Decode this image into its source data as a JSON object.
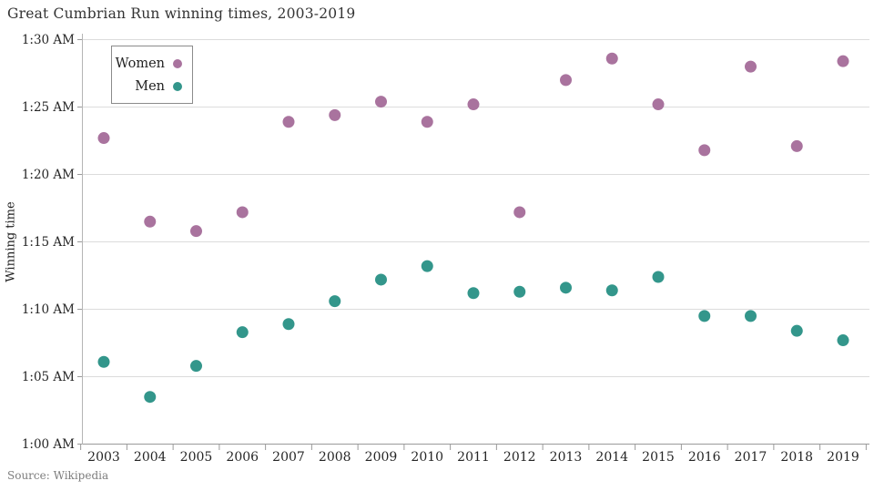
{
  "title": {
    "text": "Great Cumbrian Run winning times, 2003-2019"
  },
  "source": {
    "text": "Source: Wikipedia"
  },
  "legend": {
    "items": [
      {
        "label": "Women",
        "color": "#a9739e"
      },
      {
        "label": "Men",
        "color": "#33968b"
      }
    ]
  },
  "colors": {
    "women": "#a9739e",
    "men": "#33968b",
    "grid": "#dcdcdc",
    "axis": "#9a9a9a",
    "left_axis": "#b5b5b5",
    "tick": "#9a9a9a",
    "text": "#262626"
  },
  "chart_data": {
    "type": "scatter",
    "title": "Great Cumbrian Run winning times, 2003-2019",
    "xlabel": "",
    "ylabel": "Winning time",
    "x": [
      2003,
      2004,
      2005,
      2006,
      2007,
      2008,
      2009,
      2010,
      2011,
      2012,
      2013,
      2014,
      2015,
      2016,
      2017,
      2018,
      2019
    ],
    "y_axis_format": "time after 1:00 AM, minutes",
    "ylim_minutes": [
      0,
      30
    ],
    "grid": "horizontal",
    "legend_position": "inside top-left",
    "y_ticks": [
      {
        "label": "1:00 AM",
        "minutes": 0
      },
      {
        "label": "1:05 AM",
        "minutes": 5
      },
      {
        "label": "1:10 AM",
        "minutes": 10
      },
      {
        "label": "1:15 AM",
        "minutes": 15
      },
      {
        "label": "1:20 AM",
        "minutes": 20
      },
      {
        "label": "1:25 AM",
        "minutes": 25
      },
      {
        "label": "1:30 AM",
        "minutes": 30
      }
    ],
    "series": [
      {
        "name": "Women",
        "color": "#a9739e",
        "values_minutes": [
          22.7,
          16.5,
          15.8,
          17.2,
          23.9,
          24.4,
          25.4,
          23.9,
          25.2,
          17.2,
          27.0,
          28.6,
          25.2,
          21.8,
          28.0,
          22.1,
          28.4
        ],
        "approx_times": [
          "1:22:42",
          "1:16:30",
          "1:15:48",
          "1:17:12",
          "1:23:54",
          "1:24:24",
          "1:25:24",
          "1:23:54",
          "1:25:12",
          "1:17:12",
          "1:27:00",
          "1:28:36",
          "1:25:12",
          "1:21:48",
          "1:28:00",
          "1:22:06",
          "1:28:24"
        ]
      },
      {
        "name": "Men",
        "color": "#33968b",
        "values_minutes": [
          6.1,
          3.5,
          5.8,
          8.3,
          8.9,
          10.6,
          12.2,
          13.2,
          11.2,
          11.3,
          11.6,
          11.4,
          12.4,
          9.5,
          9.5,
          8.4,
          7.7
        ],
        "approx_times": [
          "1:06:06",
          "1:03:30",
          "1:05:48",
          "1:08:18",
          "1:08:54",
          "1:10:36",
          "1:12:12",
          "1:13:12",
          "1:11:12",
          "1:11:18",
          "1:11:36",
          "1:11:24",
          "1:12:24",
          "1:09:30",
          "1:09:30",
          "1:08:24",
          "1:07:42"
        ]
      }
    ]
  }
}
